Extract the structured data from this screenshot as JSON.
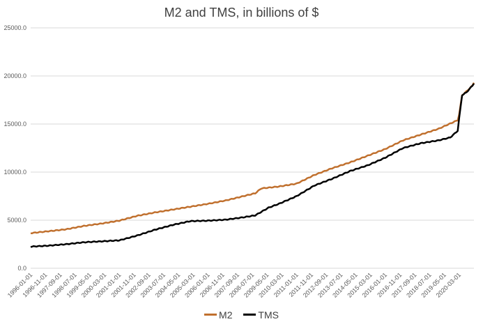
{
  "chart_data": {
    "type": "line",
    "title": "M2 and TMS, in billions of $",
    "xlabel": "",
    "ylabel": "",
    "ylim": [
      0,
      25000
    ],
    "yticks": [
      "0.0",
      "5000.0",
      "10000.0",
      "15000.0",
      "20000.0",
      "25000.0"
    ],
    "grid": true,
    "legend_position": "bottom",
    "xticks": [
      "1996-01-01",
      "1996-11-01",
      "1997-09-01",
      "1998-07-01",
      "1999-05-01",
      "2000-03-01",
      "2001-01-01",
      "2001-11-01",
      "2002-09-01",
      "2003-07-01",
      "2004-05-01",
      "2005-03-01",
      "2006-01-01",
      "2006-11-01",
      "2007-09-01",
      "2008-07-01",
      "2009-05-01",
      "2010-03-01",
      "2011-01-01",
      "2011-11-01",
      "2012-09-01",
      "2013-07-01",
      "2014-05-01",
      "2015-03-01",
      "2016-01-01",
      "2016-11-01",
      "2017-09-01",
      "2018-07-01",
      "2019-05-01",
      "2020-03-01"
    ],
    "x_range": [
      "1996-01",
      "2021-01"
    ],
    "series": [
      {
        "name": "M2",
        "color": "#C0702E",
        "points": [
          [
            "1996-01",
            3650
          ],
          [
            "1997-01",
            3850
          ],
          [
            "1998-01",
            4050
          ],
          [
            "1999-01",
            4400
          ],
          [
            "2000-01",
            4650
          ],
          [
            "2001-01",
            4950
          ],
          [
            "2002-01",
            5450
          ],
          [
            "2003-01",
            5800
          ],
          [
            "2004-01",
            6100
          ],
          [
            "2005-01",
            6400
          ],
          [
            "2006-01",
            6700
          ],
          [
            "2007-01",
            7050
          ],
          [
            "2008-01",
            7500
          ],
          [
            "2008-09",
            7800
          ],
          [
            "2009-01",
            8300
          ],
          [
            "2010-01",
            8500
          ],
          [
            "2011-01",
            8800
          ],
          [
            "2012-01",
            9700
          ],
          [
            "2013-01",
            10400
          ],
          [
            "2014-01",
            11000
          ],
          [
            "2015-01",
            11700
          ],
          [
            "2016-01",
            12400
          ],
          [
            "2017-01",
            13300
          ],
          [
            "2018-01",
            13900
          ],
          [
            "2019-01",
            14500
          ],
          [
            "2020-02",
            15400
          ],
          [
            "2020-03",
            16000
          ],
          [
            "2020-05",
            18000
          ],
          [
            "2020-08",
            18400
          ],
          [
            "2020-12",
            19000
          ],
          [
            "2021-01",
            19300
          ]
        ]
      },
      {
        "name": "TMS",
        "color": "#000000",
        "points": [
          [
            "1996-01",
            2250
          ],
          [
            "1997-01",
            2350
          ],
          [
            "1998-01",
            2500
          ],
          [
            "1999-01",
            2700
          ],
          [
            "2000-01",
            2800
          ],
          [
            "2001-01",
            2900
          ],
          [
            "2002-01",
            3400
          ],
          [
            "2003-01",
            4000
          ],
          [
            "2004-01",
            4500
          ],
          [
            "2005-01",
            4900
          ],
          [
            "2006-01",
            4950
          ],
          [
            "2007-01",
            5050
          ],
          [
            "2008-01",
            5300
          ],
          [
            "2008-09",
            5500
          ],
          [
            "2009-06",
            6300
          ],
          [
            "2010-01",
            6700
          ],
          [
            "2011-01",
            7500
          ],
          [
            "2012-01",
            8600
          ],
          [
            "2013-01",
            9300
          ],
          [
            "2014-01",
            10100
          ],
          [
            "2015-01",
            10700
          ],
          [
            "2016-01",
            11500
          ],
          [
            "2017-01",
            12500
          ],
          [
            "2018-01",
            13000
          ],
          [
            "2019-01",
            13300
          ],
          [
            "2019-09",
            13600
          ],
          [
            "2020-02",
            14300
          ],
          [
            "2020-03",
            15600
          ],
          [
            "2020-05",
            18000
          ],
          [
            "2020-08",
            18300
          ],
          [
            "2020-12",
            19000
          ],
          [
            "2021-01",
            19200
          ]
        ]
      }
    ]
  }
}
